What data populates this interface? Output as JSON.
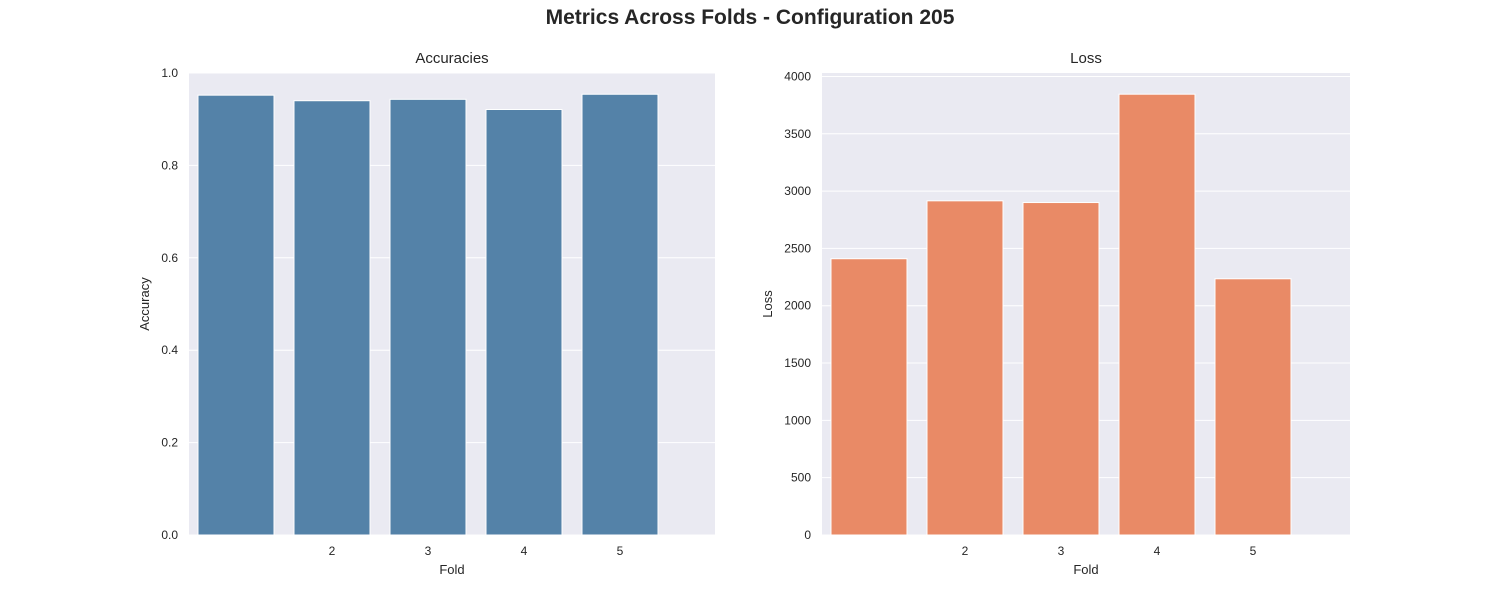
{
  "figure": {
    "title": "Metrics Across Folds - Configuration 205"
  },
  "chart_data": [
    {
      "type": "bar",
      "title": "Accuracies",
      "xlabel": "Fold",
      "ylabel": "Accuracy",
      "categories": [
        "1",
        "2",
        "3",
        "4",
        "5"
      ],
      "x_tick_labels": [
        "",
        "2",
        "3",
        "4",
        "5"
      ],
      "values": [
        0.952,
        0.94,
        0.943,
        0.921,
        0.954
      ],
      "ylim": [
        0,
        1.0
      ],
      "yticks": [
        0.0,
        0.2,
        0.4,
        0.6,
        0.8,
        1.0
      ],
      "ytick_labels": [
        "0.0",
        "0.2",
        "0.4",
        "0.6",
        "0.8",
        "1.0"
      ],
      "color": "#5482a8",
      "background": "#eaeaf2",
      "grid": true
    },
    {
      "type": "bar",
      "title": "Loss",
      "xlabel": "Fold",
      "ylabel": "Loss",
      "categories": [
        "1",
        "2",
        "3",
        "4",
        "5"
      ],
      "x_tick_labels": [
        "",
        "2",
        "3",
        "4",
        "5"
      ],
      "values": [
        2410,
        2915,
        2900,
        3845,
        2235
      ],
      "ylim": [
        0,
        4030
      ],
      "yticks": [
        0,
        500,
        1000,
        1500,
        2000,
        2500,
        3000,
        3500,
        4000
      ],
      "ytick_labels": [
        "0",
        "500",
        "1000",
        "1500",
        "2000",
        "2500",
        "3000",
        "3500",
        "4000"
      ],
      "color": "#e98a66",
      "background": "#eaeaf2",
      "grid": true
    }
  ]
}
